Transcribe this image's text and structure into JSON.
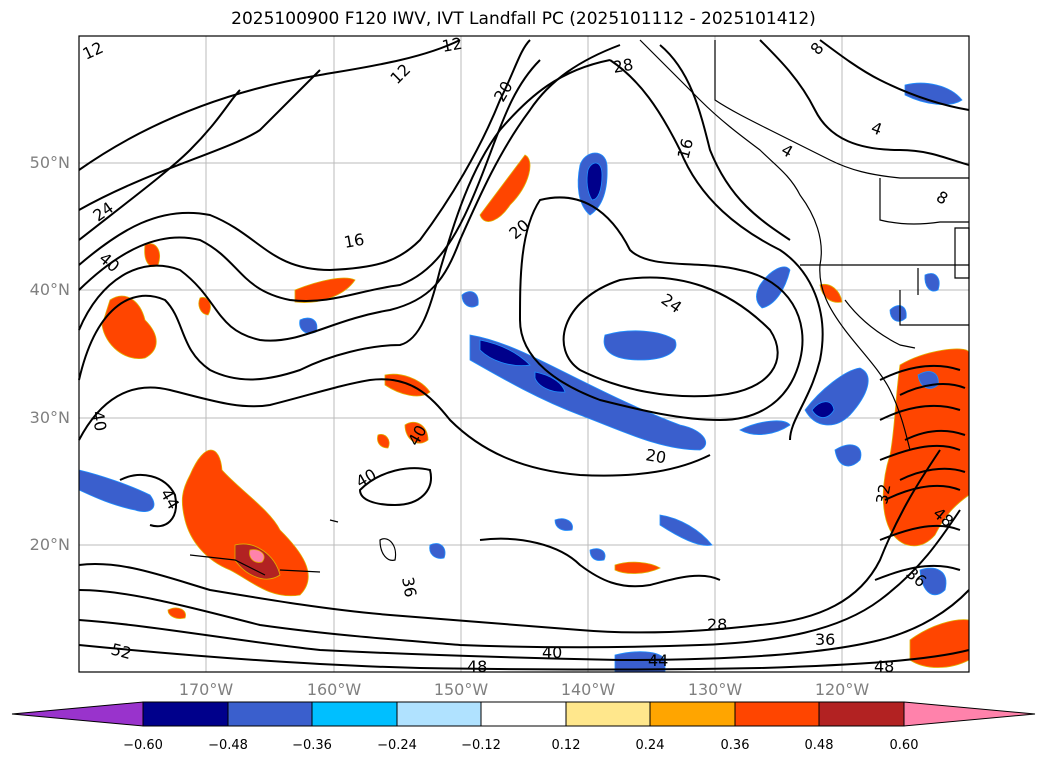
{
  "title": "2025100900 F120 IWV, IVT Landfall PC (2025101112 - 2025101412)",
  "lat_labels": [
    "50°N",
    "40°N",
    "30°N",
    "20°N"
  ],
  "lon_labels": [
    "170°W",
    "160°W",
    "150°W",
    "140°W",
    "130°W",
    "120°W"
  ],
  "contour_labels": [
    "12",
    "12",
    "12",
    "28",
    "8",
    "4",
    "4",
    "8",
    "20",
    "16",
    "24",
    "16",
    "40",
    "20",
    "24",
    "40",
    "40",
    "40",
    "20",
    "44",
    "36",
    "28",
    "36",
    "52",
    "40",
    "44",
    "48",
    "48",
    "32",
    "48",
    "36"
  ],
  "colorbar": {
    "ticks": [
      "−0.60",
      "−0.48",
      "−0.36",
      "−0.24",
      "−0.12",
      "0.12",
      "0.24",
      "0.36",
      "0.48",
      "0.60"
    ],
    "colors": [
      "#9933cc",
      "#00008b",
      "#3a5fcd",
      "#00bfff",
      "#b0e2ff",
      "#ffffff",
      "#ffe78c",
      "#ffa500",
      "#ff4500",
      "#b22222",
      "#ff82ab"
    ]
  }
}
